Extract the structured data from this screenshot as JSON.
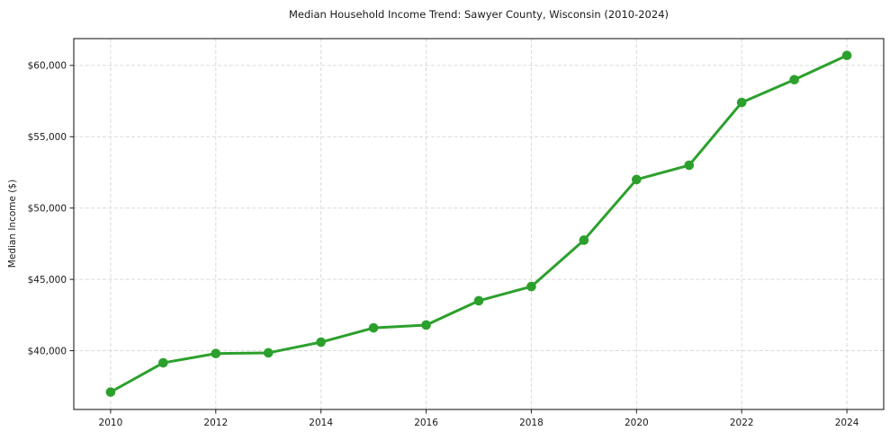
{
  "chart_data": {
    "type": "line",
    "title": "Median Household Income Trend: Sawyer County, Wisconsin (2010-2024)",
    "xlabel": "",
    "ylabel": "Median Income ($)",
    "x": [
      2010,
      2011,
      2012,
      2013,
      2014,
      2015,
      2016,
      2017,
      2018,
      2019,
      2020,
      2021,
      2022,
      2023,
      2024
    ],
    "values": [
      37100,
      39150,
      39800,
      39850,
      40600,
      41600,
      41800,
      43500,
      44500,
      47750,
      52000,
      53000,
      57400,
      59000,
      60700
    ],
    "series_name": "Median household income",
    "xlim": [
      2009.3,
      2024.7
    ],
    "ylim": [
      35880,
      61880
    ],
    "grid": "dashed-both-axes",
    "legend": "none",
    "xticks": [
      {
        "v": 2010,
        "label": "2010"
      },
      {
        "v": 2012,
        "label": "2012"
      },
      {
        "v": 2014,
        "label": "2014"
      },
      {
        "v": 2016,
        "label": "2016"
      },
      {
        "v": 2018,
        "label": "2018"
      },
      {
        "v": 2020,
        "label": "2020"
      },
      {
        "v": 2022,
        "label": "2022"
      },
      {
        "v": 2024,
        "label": "2024"
      }
    ],
    "yticks": [
      {
        "v": 40000,
        "label": "$40,000"
      },
      {
        "v": 45000,
        "label": "$45,000"
      },
      {
        "v": 50000,
        "label": "$50,000"
      },
      {
        "v": 55000,
        "label": "$55,000"
      },
      {
        "v": 60000,
        "label": "$60,000"
      }
    ],
    "colors": {
      "line": "#2ca02c",
      "marker": "#2ca02c",
      "grid": "#d9d9d9",
      "spine": "#1f1f1f",
      "text": "#1a1a1a",
      "background": "#ffffff"
    },
    "marker_shape": "circle"
  }
}
